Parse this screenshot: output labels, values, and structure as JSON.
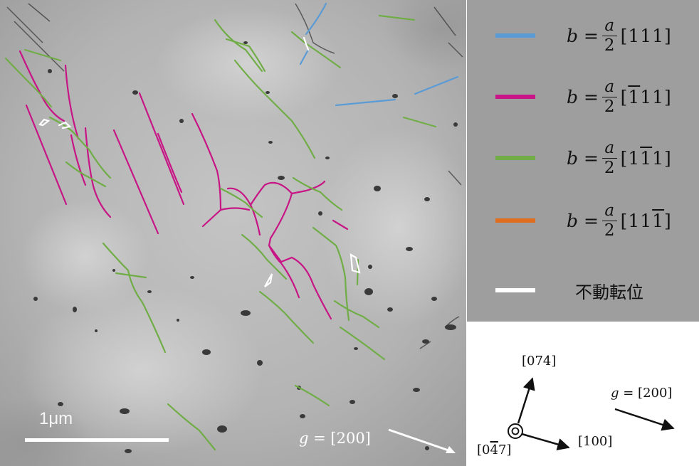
{
  "legend": {
    "items": [
      {
        "color": "#5b9bd5",
        "prefix": "b",
        "equals": "=",
        "numerator": "a",
        "denominator": "2",
        "index": [
          "1",
          "1",
          "1"
        ],
        "bars": [
          false,
          false,
          false
        ]
      },
      {
        "color": "#c71585",
        "prefix": "b",
        "equals": "=",
        "numerator": "a",
        "denominator": "2",
        "index": [
          "1",
          "1",
          "1"
        ],
        "bars": [
          true,
          false,
          false
        ]
      },
      {
        "color": "#70ad47",
        "prefix": "b",
        "equals": "=",
        "numerator": "a",
        "denominator": "2",
        "index": [
          "1",
          "1",
          "1"
        ],
        "bars": [
          false,
          true,
          false
        ]
      },
      {
        "color": "#e06c1e",
        "prefix": "b",
        "equals": "=",
        "numerator": "a",
        "denominator": "2",
        "index": [
          "1",
          "1",
          "1"
        ],
        "bars": [
          false,
          false,
          true
        ]
      }
    ],
    "immobile": {
      "color": "#ffffff",
      "label": "不動転位"
    }
  },
  "micrograph": {
    "scale_bar_label": "1μm",
    "g_var": "g",
    "g_value": " = [200]"
  },
  "axes": {
    "upper_label": "[074]",
    "right_label": "[100]",
    "center_label_open": "[0",
    "center_label_bar": "4",
    "center_label_close": "7]",
    "g_var": "g",
    "g_value": " = [200]"
  },
  "colors": {
    "background_legend": "#9e9e9e",
    "blue": "#5b9bd5",
    "magenta": "#c71585",
    "green": "#70ad47",
    "orange": "#e06c1e",
    "white": "#ffffff"
  }
}
